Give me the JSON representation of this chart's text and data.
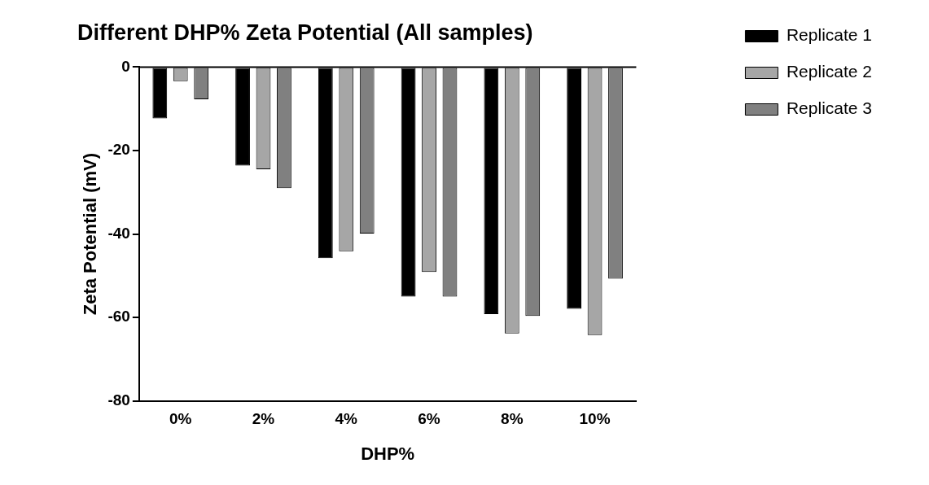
{
  "chart_data": {
    "type": "bar",
    "title": "Different DHP% Zeta Potential (All samples)",
    "xlabel": "DHP%",
    "ylabel": "Zeta Potential (mV)",
    "categories": [
      "0%",
      "2%",
      "4%",
      "6%",
      "8%",
      "10%"
    ],
    "series": [
      {
        "name": "Replicate 1",
        "color": "#000000",
        "values": [
          -12.3,
          -23.6,
          -45.8,
          -55.0,
          -59.2,
          -57.9
        ]
      },
      {
        "name": "Replicate 2",
        "color": "#a6a6a6",
        "values": [
          -3.4,
          -24.5,
          -44.1,
          -49.1,
          -63.8,
          -64.2
        ]
      },
      {
        "name": "Replicate 3",
        "color": "#808080",
        "values": [
          -7.7,
          -29.0,
          -39.9,
          -55.0,
          -59.6,
          -50.7
        ]
      }
    ],
    "ylim": [
      -80,
      0
    ],
    "yticks": [
      -80,
      -60,
      -40,
      -20,
      0
    ],
    "grid": false,
    "legend": "right",
    "ref_lines": [
      {
        "axis": "y",
        "value": 0
      }
    ]
  }
}
